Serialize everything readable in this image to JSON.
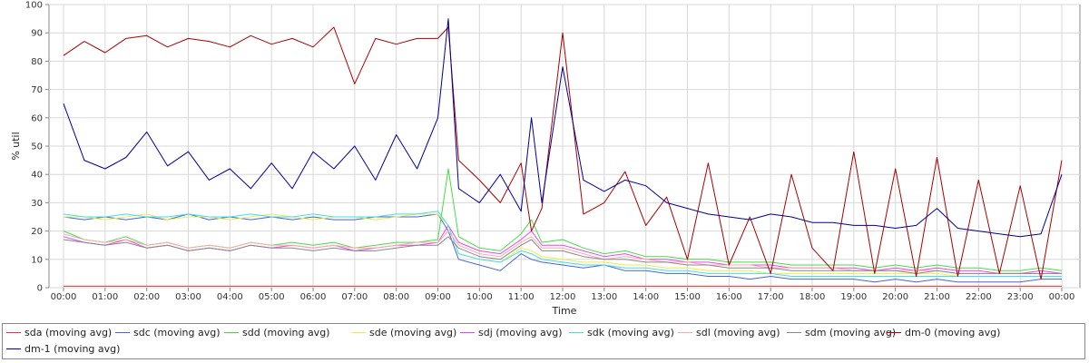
{
  "chart_data": {
    "type": "line",
    "title": "",
    "xlabel": "Time",
    "ylabel": "% util",
    "x_tick_labels": [
      "00:00",
      "01:00",
      "02:00",
      "03:00",
      "04:00",
      "05:00",
      "06:00",
      "07:00",
      "08:00",
      "09:00",
      "10:00",
      "11:00",
      "12:00",
      "13:00",
      "14:00",
      "15:00",
      "16:00",
      "17:00",
      "18:00",
      "19:00",
      "20:00",
      "21:00",
      "22:00",
      "23:00",
      "00:00"
    ],
    "y_tick_labels": [
      "0",
      "10",
      "20",
      "30",
      "40",
      "50",
      "60",
      "70",
      "80",
      "90",
      "100"
    ],
    "ylim": [
      0,
      100
    ],
    "xlim_hours": [
      0,
      24
    ],
    "grid": true,
    "legend_position": "bottom",
    "x_hours": [
      0,
      0.5,
      1,
      1.5,
      2,
      2.5,
      3,
      3.5,
      4,
      4.5,
      5,
      5.5,
      6,
      6.5,
      7,
      7.5,
      8,
      8.5,
      9,
      9.25,
      9.5,
      10,
      10.5,
      11,
      11.25,
      11.5,
      12,
      12.5,
      13,
      13.5,
      14,
      14.5,
      15,
      15.5,
      16,
      16.5,
      17,
      17.5,
      18,
      18.5,
      19,
      19.5,
      20,
      20.5,
      21,
      21.5,
      22,
      22.5,
      23,
      23.5,
      24
    ],
    "series": [
      {
        "name": "sda (moving avg)",
        "color": "#ee3333",
        "values": [
          0.5,
          0.5,
          0.5,
          0.5,
          0.5,
          0.5,
          0.5,
          0.5,
          0.5,
          0.5,
          0.5,
          0.5,
          0.5,
          0.5,
          0.5,
          0.5,
          0.5,
          0.5,
          0.5,
          0.5,
          0.5,
          0.5,
          0.5,
          0.5,
          0.5,
          0.5,
          0.5,
          0.5,
          0.5,
          0.5,
          0.5,
          0.5,
          0.5,
          0.5,
          0.5,
          0.5,
          0.5,
          0.5,
          0.5,
          0.5,
          0.5,
          0.5,
          0.5,
          0.5,
          0.5,
          0.5,
          0.5,
          0.5,
          0.5,
          0.5,
          0.5
        ]
      },
      {
        "name": "sdc (moving avg)",
        "color": "#4466dd",
        "values": [
          25,
          24,
          25,
          24,
          25,
          24,
          26,
          24,
          25,
          24,
          25,
          24,
          25,
          24,
          24,
          25,
          25,
          25,
          26,
          20,
          10,
          8,
          6,
          12,
          10,
          9,
          8,
          7,
          8,
          6,
          6,
          5,
          5,
          4,
          4,
          3,
          4,
          3,
          3,
          3,
          3,
          2,
          3,
          2,
          3,
          2,
          2,
          2,
          2,
          3,
          3
        ]
      },
      {
        "name": "sdd (moving avg)",
        "color": "#44dd44",
        "values": [
          20,
          17,
          16,
          18,
          15,
          16,
          14,
          15,
          14,
          16,
          15,
          16,
          15,
          16,
          14,
          15,
          16,
          16,
          17,
          42,
          18,
          14,
          13,
          19,
          24,
          16,
          17,
          14,
          12,
          13,
          11,
          11,
          10,
          10,
          9,
          9,
          9,
          8,
          8,
          8,
          8,
          7,
          8,
          7,
          8,
          7,
          7,
          6,
          6,
          7,
          6
        ]
      },
      {
        "name": "sde (moving avg)",
        "color": "#eeee44",
        "values": [
          25,
          25,
          24,
          25,
          26,
          24,
          25,
          25,
          24,
          25,
          26,
          25,
          24,
          25,
          25,
          24,
          25,
          26,
          26,
          22,
          12,
          10,
          9,
          14,
          13,
          11,
          10,
          9,
          9,
          8,
          8,
          7,
          7,
          6,
          6,
          6,
          5,
          5,
          5,
          5,
          5,
          5,
          5,
          5,
          5,
          4,
          4,
          4,
          4,
          4,
          4
        ]
      },
      {
        "name": "sdj (moving avg)",
        "color": "#ee44ee",
        "values": [
          18,
          16,
          15,
          17,
          14,
          15,
          13,
          14,
          13,
          15,
          14,
          15,
          14,
          15,
          13,
          14,
          15,
          15,
          16,
          22,
          16,
          13,
          12,
          17,
          20,
          15,
          15,
          13,
          11,
          12,
          10,
          10,
          9,
          9,
          8,
          8,
          8,
          7,
          7,
          7,
          7,
          6,
          7,
          6,
          7,
          6,
          6,
          5,
          5,
          6,
          5
        ]
      },
      {
        "name": "sdk (moving avg)",
        "color": "#44ddee",
        "values": [
          26,
          25,
          25,
          26,
          25,
          25,
          26,
          25,
          25,
          26,
          25,
          25,
          26,
          25,
          25,
          25,
          26,
          26,
          27,
          22,
          12,
          10,
          9,
          13,
          12,
          10,
          9,
          8,
          8,
          7,
          7,
          6,
          6,
          5,
          5,
          5,
          5,
          4,
          4,
          4,
          4,
          4,
          4,
          4,
          4,
          4,
          4,
          4,
          4,
          4,
          4
        ]
      },
      {
        "name": "sdl (moving avg)",
        "color": "#ffaaaa",
        "values": [
          19,
          17,
          16,
          17,
          15,
          16,
          14,
          15,
          14,
          16,
          15,
          15,
          14,
          15,
          14,
          14,
          15,
          16,
          16,
          20,
          15,
          12,
          11,
          16,
          18,
          14,
          14,
          12,
          10,
          11,
          10,
          9,
          9,
          8,
          8,
          8,
          7,
          7,
          7,
          7,
          6,
          6,
          6,
          6,
          6,
          5,
          5,
          5,
          5,
          5,
          5
        ]
      },
      {
        "name": "sdm (moving avg)",
        "color": "#888888",
        "values": [
          17,
          16,
          15,
          16,
          14,
          15,
          13,
          14,
          13,
          15,
          14,
          14,
          13,
          14,
          13,
          13,
          14,
          15,
          15,
          18,
          14,
          11,
          10,
          15,
          17,
          13,
          13,
          11,
          10,
          10,
          9,
          9,
          8,
          8,
          7,
          7,
          7,
          6,
          6,
          6,
          6,
          6,
          6,
          5,
          6,
          5,
          5,
          5,
          5,
          5,
          5
        ]
      },
      {
        "name": "dm-0 (moving avg)",
        "color": "#aa0000",
        "values": [
          82,
          87,
          83,
          88,
          89,
          85,
          88,
          87,
          85,
          89,
          86,
          88,
          85,
          92,
          72,
          88,
          86,
          88,
          88,
          92,
          45,
          38,
          30,
          44,
          20,
          28,
          90,
          26,
          30,
          41,
          22,
          32,
          10,
          44,
          8,
          25,
          5,
          40,
          14,
          6,
          48,
          5,
          42,
          4,
          46,
          4,
          38,
          5,
          36,
          3,
          45
        ]
      },
      {
        "name": "dm-1 (moving avg)",
        "color": "#000099",
        "values": [
          65,
          45,
          42,
          46,
          55,
          43,
          48,
          38,
          42,
          35,
          44,
          35,
          48,
          42,
          50,
          38,
          54,
          42,
          60,
          95,
          35,
          30,
          40,
          27,
          60,
          30,
          78,
          38,
          34,
          38,
          36,
          30,
          28,
          26,
          25,
          24,
          26,
          25,
          23,
          23,
          22,
          22,
          21,
          22,
          28,
          21,
          20,
          19,
          18,
          19,
          40
        ]
      }
    ]
  }
}
